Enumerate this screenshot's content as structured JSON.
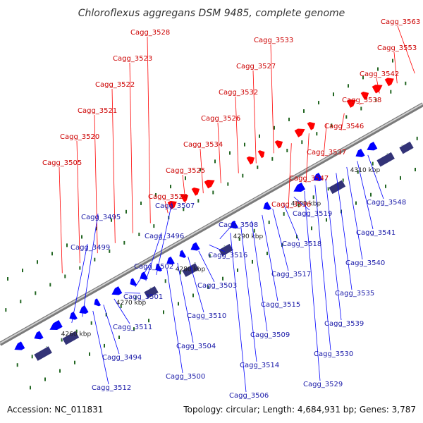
{
  "title": "Chloroflexus aggregans DSM 9485, complete genome",
  "footer": {
    "accession": "Accession: NC_011831",
    "stats": "Topology: circular; Length: 4,684,931 bp; Genes: 3,787"
  },
  "colors": {
    "forward": "#ff0000",
    "reverse": "#0000ff",
    "operon": "#333377",
    "ladder": "#226622",
    "backbone": "#999999",
    "label_forward": "#cc0000",
    "label_reverse": "#1a1aa8"
  },
  "scale_labels": [
    "4260 kbp",
    "4270 kbp",
    "4280 kbp",
    "4290 kbp",
    "4300 kbp",
    "4310 kbp"
  ],
  "forward_genes": [
    "Cagg_3563",
    "Cagg_3553",
    "Cagg_3542",
    "Cagg_3538",
    "Cagg_3546",
    "Cagg_3537",
    "Cagg_3547",
    "Cagg_3536",
    "Cagg_3533",
    "Cagg_3527",
    "Cagg_3532",
    "Cagg_3526",
    "Cagg_3534",
    "Cagg_3525",
    "Cagg_3524",
    "Cagg_3528",
    "Cagg_3523",
    "Cagg_3522",
    "Cagg_3521",
    "Cagg_3520",
    "Cagg_3505"
  ],
  "reverse_genes": [
    "Cagg_3548",
    "Cagg_3541",
    "Cagg_3540",
    "Cagg_3535",
    "Cagg_3539",
    "Cagg_3530",
    "Cagg_3529",
    "Cagg_3519",
    "Cagg_3518",
    "Cagg_3517",
    "Cagg_3515",
    "Cagg_3509",
    "Cagg_3514",
    "Cagg_3506",
    "Cagg_3508",
    "Cagg_3516",
    "Cagg_3503",
    "Cagg_3510",
    "Cagg_3504",
    "Cagg_3500",
    "Cagg_3507",
    "Cagg_3496",
    "Cagg_3502",
    "Cagg_3501",
    "Cagg_3511",
    "Cagg_3494",
    "Cagg_3512",
    "Cagg_3495",
    "Cagg_3499"
  ]
}
